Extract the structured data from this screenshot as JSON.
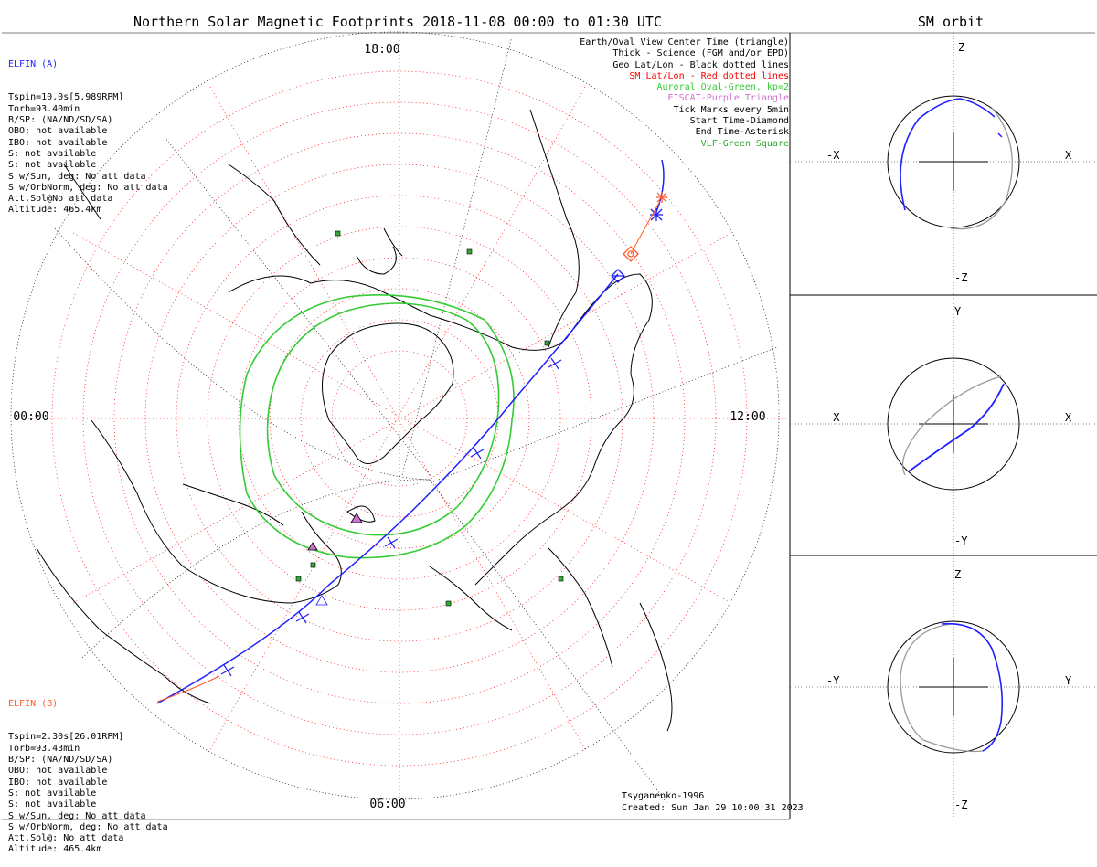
{
  "title": "Northern Solar Magnetic Footprints 2018-11-08 00:00 to 01:30 UTC",
  "orbit_title": "SM orbit",
  "hour_labels": {
    "top": "18:00",
    "left": "00:00",
    "right": "12:00",
    "bottom": "06:00"
  },
  "elfin_a": {
    "name": "ELFIN (A)",
    "color": "#1f1fff",
    "lines": [
      "Tspin=10.0s[5.989RPM]",
      "Torb=93.40min",
      "B/SP: (NA/ND/SD/SA)",
      "OBO: not available",
      "IBO: not available",
      "S: not available",
      "S: not available",
      "S w/Sun, deg: No att data",
      "S w/OrbNorm, deg: No att data",
      "Att.Sol@No att data",
      "Altitude: 465.4km"
    ]
  },
  "elfin_b": {
    "name": "ELFIN (B)",
    "color": "#ff5a2a",
    "lines": [
      "Tspin=2.30s[26.01RPM]",
      "Torb=93.43min",
      "B/SP: (NA/ND/SD/SA)",
      "OBO: not available",
      "IBO: not available",
      "S: not available",
      "S: not available",
      "S w/Sun, deg: No att data",
      "S w/OrbNorm, deg: No att data",
      "Att.Sol@: No att data",
      "Altitude: 465.4km"
    ]
  },
  "legend": [
    {
      "text": "Earth/Oval View Center Time (triangle)",
      "color": "#000000"
    },
    {
      "text": "Thick - Science (FGM and/or EPD)",
      "color": "#000000"
    },
    {
      "text": "Geo Lat/Lon - Black dotted lines",
      "color": "#000000"
    },
    {
      "text": "SM Lat/Lon - Red dotted lines",
      "color": "#ff0000"
    },
    {
      "text": "Auroral Oval-Green, kp=2",
      "color": "#33cc33"
    },
    {
      "text": "EISCAT-Purple Triangle",
      "color": "#d070d0"
    },
    {
      "text": "Tick Marks every 5min",
      "color": "#000000"
    },
    {
      "text": "Start Time-Diamond",
      "color": "#000000"
    },
    {
      "text": "End Time-Asterisk",
      "color": "#000000"
    },
    {
      "text": "VLF-Green Square",
      "color": "#33aa33"
    }
  ],
  "footer": {
    "model": "Tsyganenko-1996",
    "created": "Created: Sun Jan 29 10:00:31 2023"
  },
  "orbit_panels": [
    {
      "top": "Z",
      "bottom": "-Z",
      "left": "-X",
      "right": "X"
    },
    {
      "top": "Y",
      "bottom": "-Y",
      "left": "-X",
      "right": "X"
    },
    {
      "top": "Z",
      "bottom": "-Z",
      "left": "-Y",
      "right": "Y"
    }
  ],
  "colors": {
    "elfin_a": "#1f1fff",
    "elfin_b": "#ff5a2a",
    "oval": "#33cc33",
    "sm_grid": "#ff0000",
    "geo_grid": "#000000",
    "eiscat": "#d070d0",
    "vlf": "#33aa33"
  }
}
